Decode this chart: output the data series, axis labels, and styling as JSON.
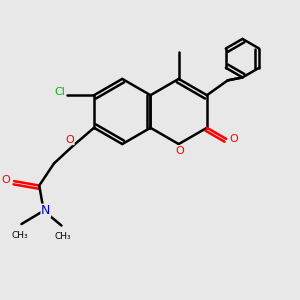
{
  "bg_color": "#e8e8e8",
  "bond_color": "#000000",
  "bond_width": 1.8,
  "figsize": [
    3.0,
    3.0
  ],
  "dpi": 100,
  "colors": {
    "O": "#ff0000",
    "N": "#0000cc",
    "Cl": "#00bb00",
    "C": "#000000"
  },
  "xlim": [
    0,
    10
  ],
  "ylim": [
    0,
    10
  ]
}
